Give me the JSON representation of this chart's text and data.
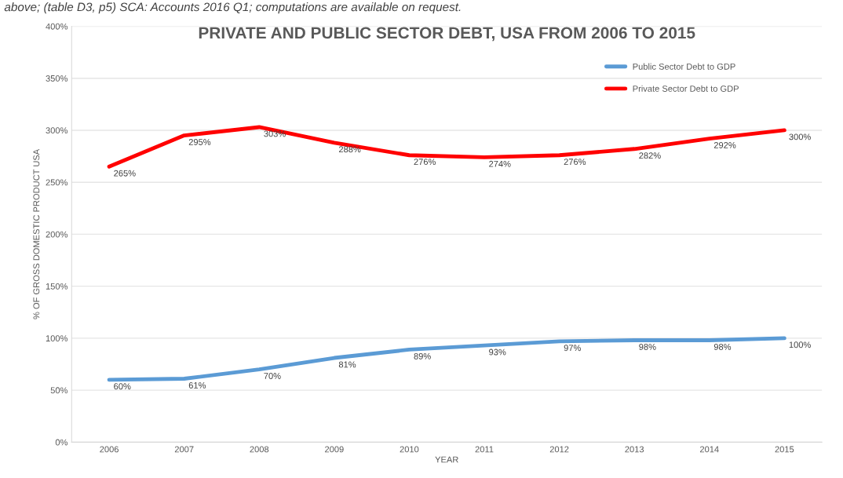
{
  "chart_data": {
    "type": "line",
    "title": "PRIVATE AND PUBLIC SECTOR DEBT, USA FROM 2006 TO 2015",
    "xlabel": "YEAR",
    "ylabel": "% OF GROSS DOMESTIC PRODUCT USA",
    "annotations": [
      "above; (table D3, p5) SCA: Accounts 2016 Q1; computations are available on request."
    ],
    "categories": [
      "2006",
      "2007",
      "2008",
      "2009",
      "2010",
      "2011",
      "2012",
      "2013",
      "2014",
      "2015"
    ],
    "series": [
      {
        "name": "Public Sector Debt to GDP",
        "color": "#5b9bd5",
        "values": [
          60,
          61,
          70,
          81,
          89,
          93,
          97,
          98,
          98,
          100
        ],
        "value_labels": [
          "60%",
          "61%",
          "70%",
          "81%",
          "89%",
          "93%",
          "97%",
          "98%",
          "98%",
          "100%"
        ]
      },
      {
        "name": "Private Sector Debt to GDP",
        "color": "#ff0000",
        "values": [
          265,
          295,
          303,
          288,
          276,
          274,
          276,
          282,
          292,
          300
        ],
        "value_labels": [
          "265%",
          "295%",
          "303%",
          "288%",
          "276%",
          "274%",
          "276%",
          "282%",
          "292%",
          "300%"
        ]
      }
    ],
    "ylim": [
      0,
      400
    ],
    "yticks": [
      {
        "value": 0,
        "label": "0%"
      },
      {
        "value": 50,
        "label": "50%"
      },
      {
        "value": 100,
        "label": "100%"
      },
      {
        "value": 150,
        "label": "150%"
      },
      {
        "value": 200,
        "label": "200%"
      },
      {
        "value": 250,
        "label": "250%"
      },
      {
        "value": 300,
        "label": "300%"
      },
      {
        "value": 350,
        "label": "350%"
      },
      {
        "value": 400,
        "label": "400%"
      }
    ],
    "grid": "y",
    "legend": "top right",
    "marker": "none",
    "line_style": "solid"
  }
}
